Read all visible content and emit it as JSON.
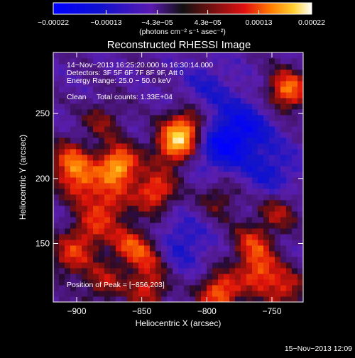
{
  "chart_data": {
    "type": "heatmap",
    "title": "Reconstructed RHESSI Image",
    "xlabel": "Heliocentric X (arcsec)",
    "ylabel": "Heliocentric Y (arcsec)",
    "xlim": [
      -918,
      -726
    ],
    "ylim": [
      105,
      297
    ],
    "x_ticks": [
      -900,
      -850,
      -800,
      -750
    ],
    "y_ticks": [
      150,
      200,
      250
    ],
    "x_tick_labels": [
      "−900",
      "−850",
      "−800",
      "−750"
    ],
    "y_tick_labels": [
      "150",
      "200",
      "250"
    ],
    "colorbar": {
      "range": [
        -0.00022,
        0.00022
      ],
      "ticks": [
        -0.00022,
        -0.00013,
        -4.3e-05,
        4.3e-05,
        0.00013,
        0.00022
      ],
      "tick_labels": [
        "−0.00022",
        "−0.00013",
        "−4.3e−05",
        "4.3e−05",
        "0.00013",
        "0.00022"
      ],
      "units": "(photons cm⁻² s⁻¹ asec⁻²)",
      "placement": "top"
    },
    "peak": [
      -856,
      203
    ],
    "sources": [
      {
        "x": -868,
        "y": 210,
        "amp": 0.00022
      },
      {
        "x": -905,
        "y": 212,
        "amp": 0.00016
      },
      {
        "x": -895,
        "y": 195,
        "amp": 0.00012
      },
      {
        "x": -840,
        "y": 190,
        "amp": 0.00016
      },
      {
        "x": -825,
        "y": 225,
        "amp": 0.00018
      },
      {
        "x": -815,
        "y": 240,
        "amp": 0.00016
      },
      {
        "x": -875,
        "y": 180,
        "amp": 0.00012
      },
      {
        "x": -890,
        "y": 160,
        "amp": 0.00011
      },
      {
        "x": -905,
        "y": 140,
        "amp": 0.00012
      },
      {
        "x": -860,
        "y": 150,
        "amp": 0.00012
      },
      {
        "x": -845,
        "y": 140,
        "amp": 0.0001
      },
      {
        "x": -880,
        "y": 120,
        "amp": 0.0001
      },
      {
        "x": -845,
        "y": 115,
        "amp": 0.00012
      },
      {
        "x": -790,
        "y": 112,
        "amp": 0.00018
      },
      {
        "x": -760,
        "y": 128,
        "amp": 0.00014
      },
      {
        "x": -740,
        "y": 115,
        "amp": 0.00012
      },
      {
        "x": -765,
        "y": 150,
        "amp": 0.00012
      },
      {
        "x": -745,
        "y": 175,
        "amp": 0.0001
      },
      {
        "x": -738,
        "y": 268,
        "amp": 0.00018
      },
      {
        "x": -790,
        "y": 185,
        "amp": 8e-05
      },
      {
        "x": -880,
        "y": 245,
        "amp": 8e-05
      }
    ],
    "sinks": [
      {
        "x": -790,
        "y": 225,
        "amp": 0.00012
      },
      {
        "x": -770,
        "y": 240,
        "amp": 0.0001
      },
      {
        "x": -750,
        "y": 205,
        "amp": 8e-05
      },
      {
        "x": -820,
        "y": 150,
        "amp": 8e-05
      },
      {
        "x": -800,
        "y": 270,
        "amp": 6e-05
      }
    ],
    "grid": false
  },
  "plot": {
    "colorbar_units": "(photons cm⁻² s⁻¹ asec⁻²)",
    "time_range": "14−Nov−2013 16:25:20.000 to 16:30:14.000",
    "detectors": "Detectors: 3F 5F 6F 7F 8F 9F, Att 0",
    "energy_range": "Energy Range: 25.0 − 50.0 keV",
    "algorithm": "Clean",
    "total_counts": "Total counts: 1.33E+04",
    "peak_label": "Position of Peak = [−856,203]",
    "footer_date": "15−Nov−2013 12:09"
  }
}
